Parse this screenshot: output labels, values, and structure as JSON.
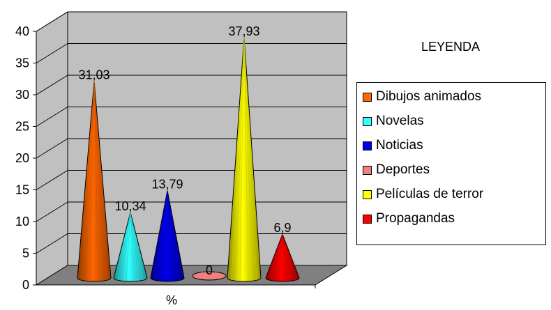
{
  "chart_data": {
    "type": "bar",
    "style": "3d-cone",
    "categories": [
      "Dibujos animados",
      "Novelas",
      "Noticias",
      "Deportes",
      "Películas de terror",
      "Propagandas"
    ],
    "values": [
      31.03,
      10.34,
      13.79,
      0,
      37.93,
      6.9
    ],
    "value_labels": [
      "31,03",
      "10,34",
      "13,79",
      "0",
      "37,93",
      "6,9"
    ],
    "colors": [
      "#ff6600",
      "#33ffff",
      "#0000ee",
      "#ee8080",
      "#ffff00",
      "#ff0000"
    ],
    "xlabel": "%",
    "ylim": [
      0,
      40
    ],
    "yticks": [
      "0",
      "5",
      "10",
      "15",
      "20",
      "25",
      "30",
      "35",
      "40"
    ],
    "grid": true,
    "wall_color": "#c0c0c0",
    "floor_color": "#808080",
    "legend": {
      "title": "LEYENDA",
      "placement": "right"
    }
  }
}
